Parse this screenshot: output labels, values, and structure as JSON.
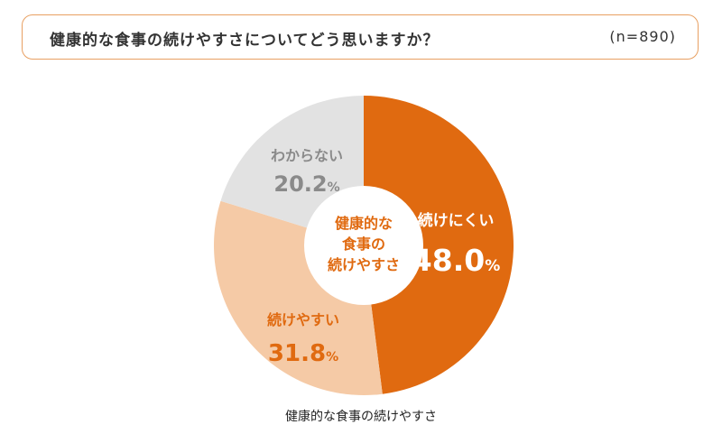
{
  "header": {
    "question": "健康的な食事の続けやすさについてどう思いますか？",
    "sample_size": "(n=890)"
  },
  "caption": "健康的な食事の続けやすさ",
  "chart_data": {
    "type": "pie",
    "title": "健康的な食事の続けやすさ",
    "center_label": [
      "健康的な",
      "食事の",
      "続けやすさ"
    ],
    "unit": "%",
    "slices": [
      {
        "label": "続けにくい",
        "value": 48.0,
        "display": "48.0",
        "color": "#E06A10",
        "label_color": "#ffffff"
      },
      {
        "label": "続けやすい",
        "value": 31.8,
        "display": "31.8",
        "color": "#F5CAA6",
        "label_color": "#E06A10"
      },
      {
        "label": "わからない",
        "value": 20.2,
        "display": "20.2",
        "color": "#E2E2E2",
        "label_color": "#8A8A8A"
      }
    ],
    "center_color": "#E06A10"
  }
}
